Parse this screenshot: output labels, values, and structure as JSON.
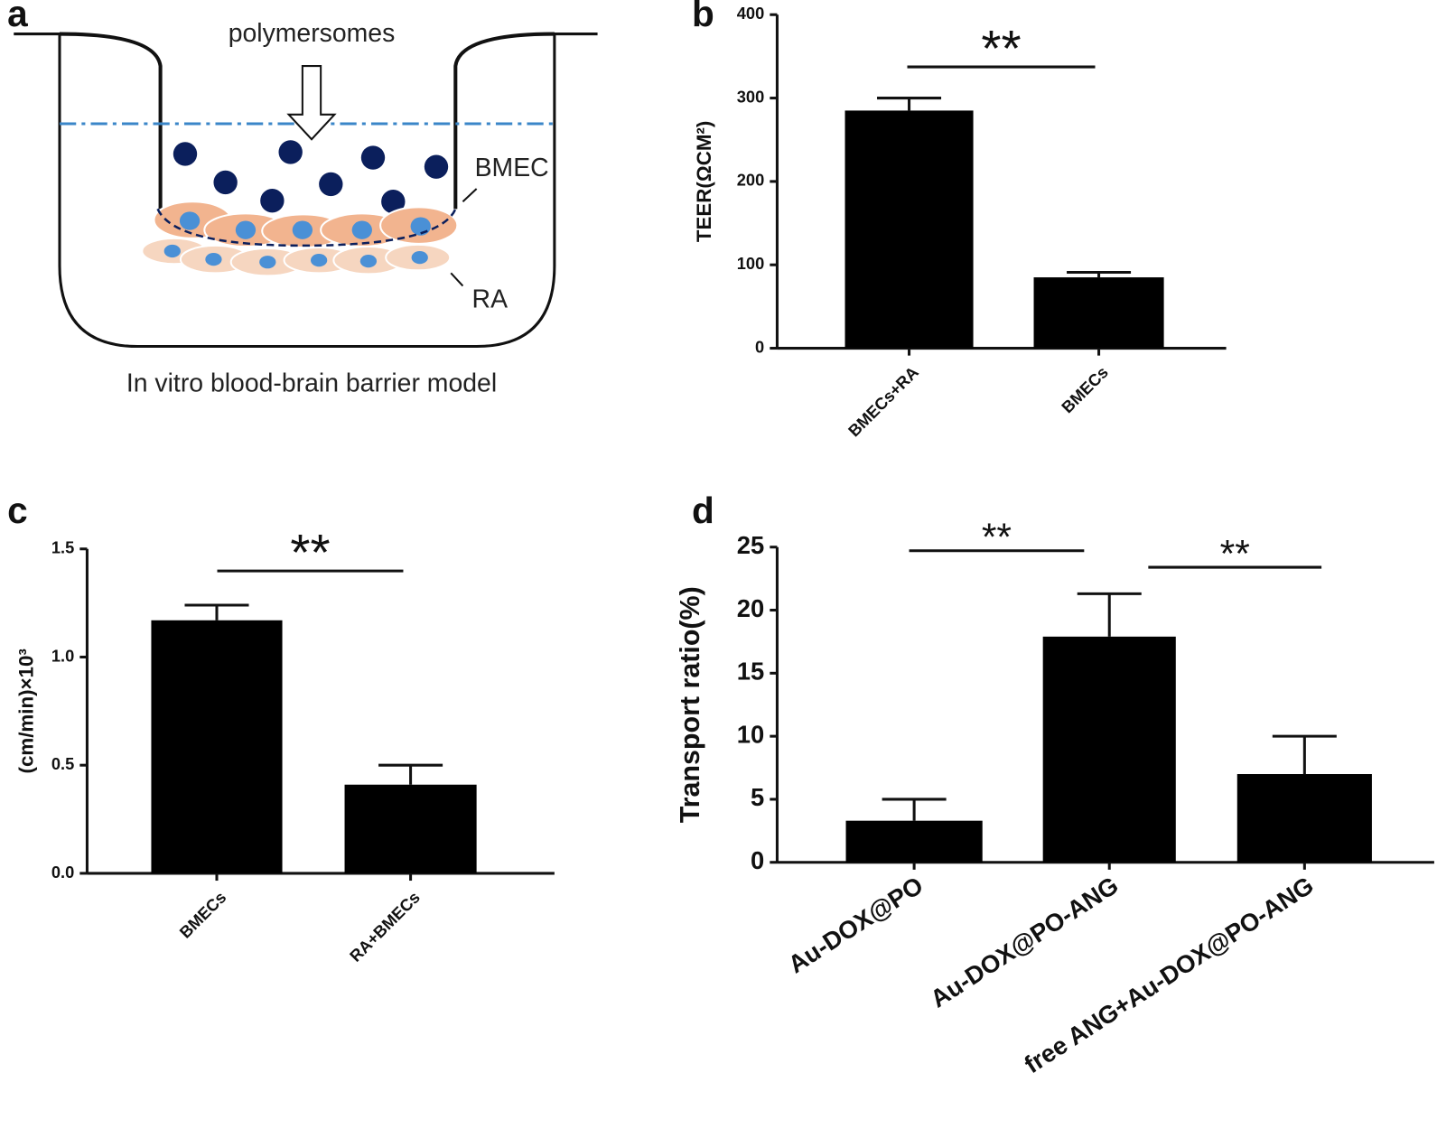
{
  "diagram": {
    "label": "a",
    "arrow_label": "polymersomes",
    "layer_labels": [
      "BMEC",
      "RA"
    ],
    "caption": "In vitro blood-brain barrier model"
  },
  "chart_data": [
    {
      "type": "bar",
      "label": "b",
      "y_label": "TEER(ΩCM²)",
      "categories": [
        "BMECs+RA",
        "BMECs"
      ],
      "values": [
        285,
        85
      ],
      "errors": [
        15,
        6
      ],
      "color": "#000000",
      "ylim": [
        0,
        400
      ],
      "yticks": [
        0,
        100,
        200,
        300,
        400
      ],
      "annotations": [
        "**"
      ]
    },
    {
      "type": "bar",
      "label": "c",
      "y_label": "(cm/min)×10³",
      "categories": [
        "BMECs",
        "RA+BMECs"
      ],
      "values": [
        1.17,
        0.41
      ],
      "errors": [
        0.07,
        0.09
      ],
      "color": "#000000",
      "ylim": [
        0,
        1.5
      ],
      "yticks": [
        {
          "value": 0,
          "label": "0.0"
        },
        0.5,
        {
          "value": 1,
          "label": "1.0"
        },
        1.5
      ],
      "annotations": [
        "**"
      ]
    },
    {
      "type": "bar",
      "label": "d",
      "y_label": "Transport ratio(%)",
      "categories": [
        "Au-DOX@PO",
        "Au-DOX@PO-ANG",
        "free ANG+Au-DOX@PO-ANG"
      ],
      "values": [
        3.3,
        17.9,
        7.0
      ],
      "errors": [
        1.7,
        3.4,
        3.0
      ],
      "color": "#000000",
      "ylim": [
        0,
        25
      ],
      "yticks": [
        0,
        5,
        10,
        15,
        20,
        25
      ],
      "annotations": [
        "**",
        "**"
      ]
    }
  ]
}
